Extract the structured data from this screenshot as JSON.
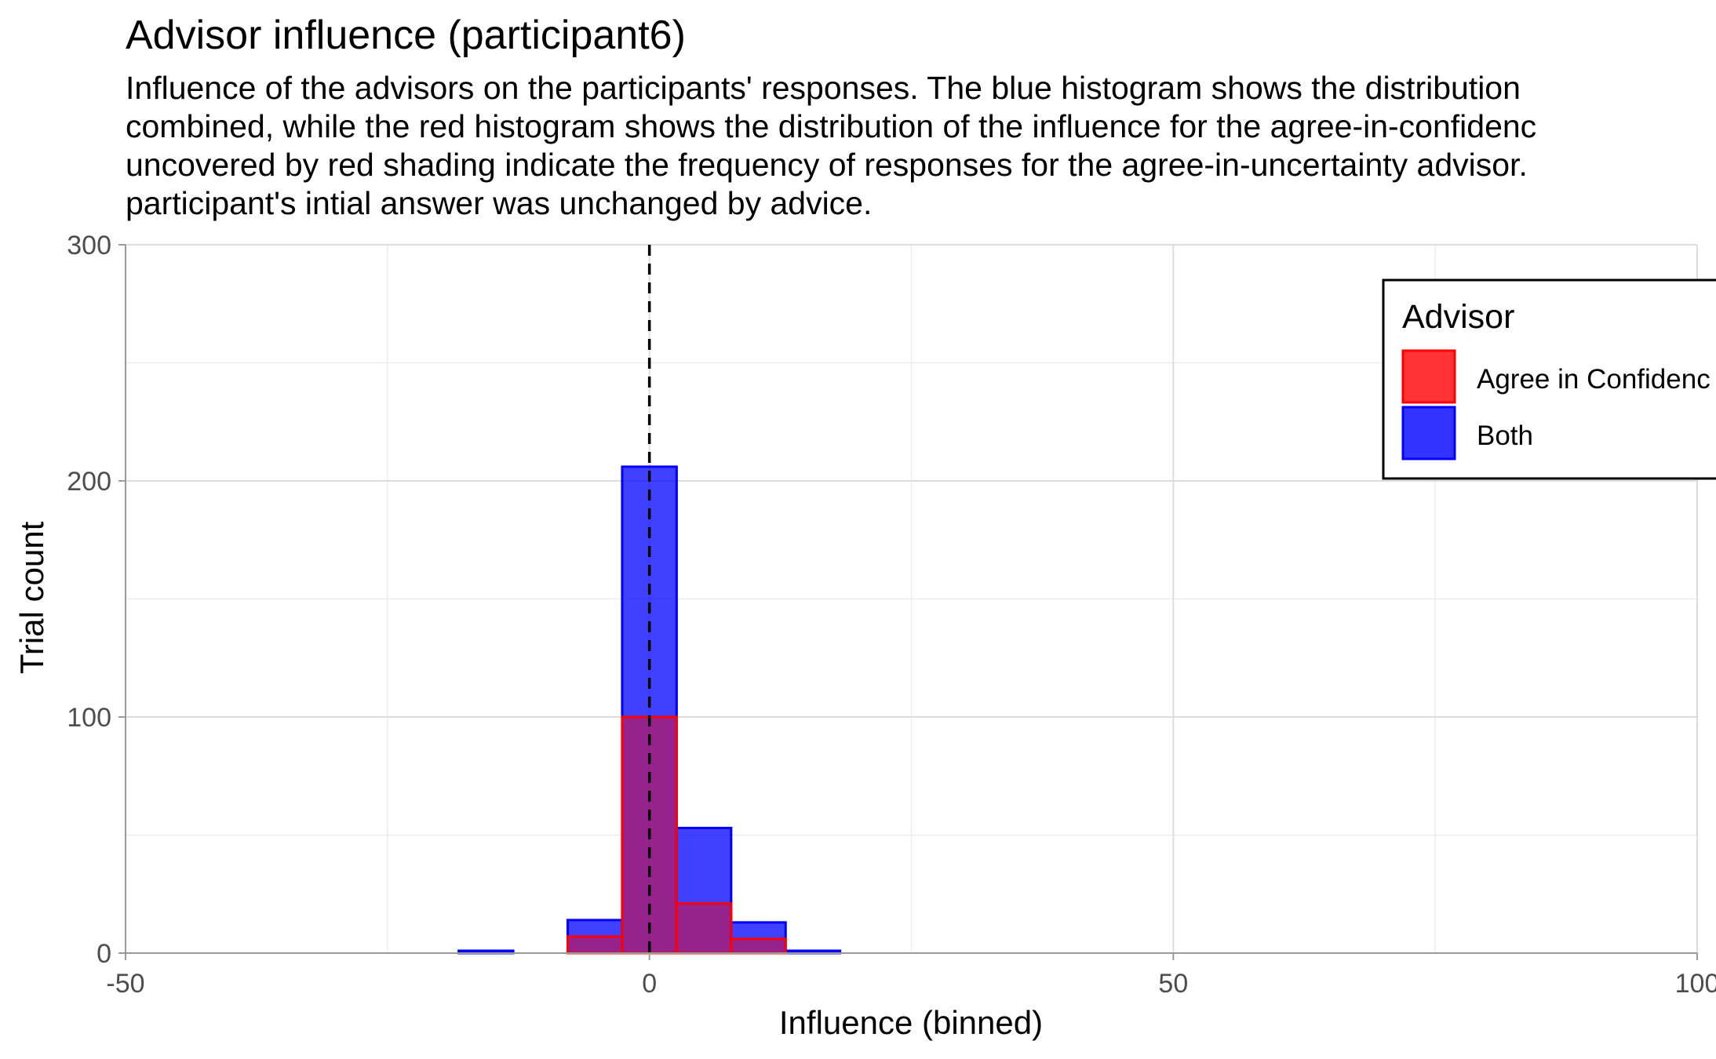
{
  "chart_data": {
    "type": "bar",
    "title": "Advisor influence (participant6)",
    "subtitle": [
      "Influence of the advisors on the participants' responses.  The blue histogram shows the distribution",
      "combined, while the red histogram shows the distribution of the influence for the agree-in-confidenc",
      "uncovered by red shading indicate the frequency of responses for the agree-in-uncertainty advisor.",
      "participant's intial answer was unchanged by advice."
    ],
    "xlabel": "Influence (binned)",
    "ylabel": "Trial count",
    "xlim": [
      -50,
      100
    ],
    "ylim": [
      0,
      300
    ],
    "x_ticks": [
      -50,
      0,
      50,
      100
    ],
    "x_tick_labels": [
      "-50",
      "0",
      "50",
      "100"
    ],
    "y_ticks": [
      0,
      100,
      200,
      300
    ],
    "y_tick_labels": [
      "0",
      "100",
      "200",
      "300"
    ],
    "bin_width": 5.2,
    "reference_line": {
      "x": 0,
      "style": "dashed"
    },
    "series": [
      {
        "name": "Both",
        "fill": "#0000ff",
        "stroke": "#0000ff",
        "opacity": 0.75,
        "bins": [
          {
            "center": -15.6,
            "count": 1
          },
          {
            "center": -5.2,
            "count": 14
          },
          {
            "center": 0,
            "count": 206
          },
          {
            "center": 5.2,
            "count": 53
          },
          {
            "center": 10.4,
            "count": 13
          },
          {
            "center": 15.6,
            "count": 1
          }
        ]
      },
      {
        "name": "Agree in Confidenc",
        "fill": "#ff0000",
        "stroke": "#ff0000",
        "opacity": 0.45,
        "bins": [
          {
            "center": -5.2,
            "count": 7
          },
          {
            "center": 0,
            "count": 100
          },
          {
            "center": 5.2,
            "count": 21
          },
          {
            "center": 10.4,
            "count": 6
          }
        ]
      }
    ],
    "legend": {
      "title": "Advisor",
      "placement": "top-right",
      "items": [
        {
          "label": "Agree in Confidenc",
          "fill": "#ff0000",
          "stroke": "#ff0000"
        },
        {
          "label": "Both",
          "fill": "#0000ff",
          "stroke": "#0000ff"
        }
      ]
    },
    "grid": true
  }
}
